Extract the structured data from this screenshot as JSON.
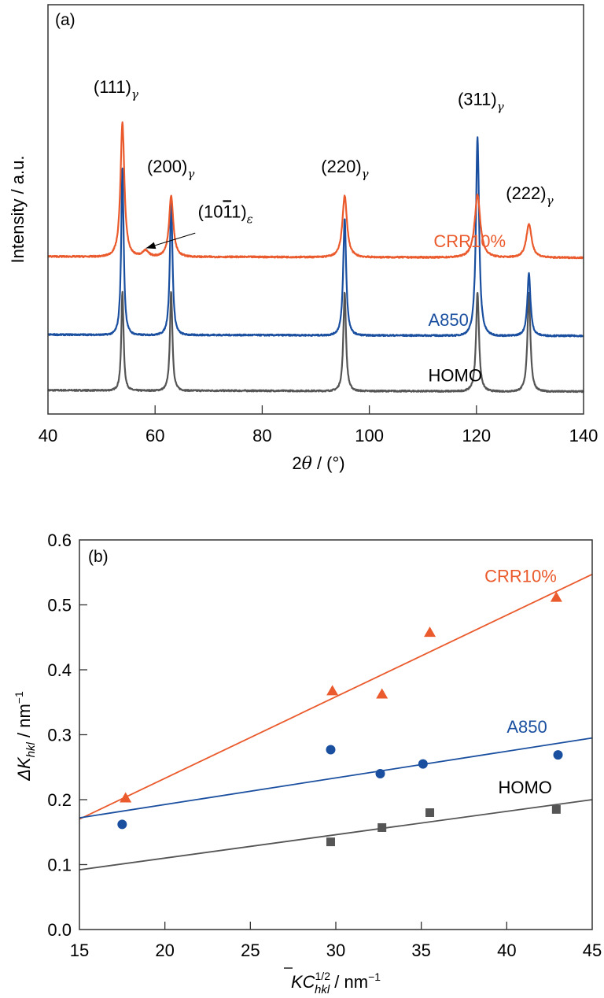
{
  "chart_data": [
    {
      "panel": "(a)",
      "type": "line",
      "title": "",
      "xlabel": "2θ / (°)",
      "ylabel": "Intensity / a.u.",
      "xlim": [
        40,
        140
      ],
      "ylim": [
        0,
        100
      ],
      "xticks": [
        40,
        60,
        80,
        100,
        120,
        140
      ],
      "yticks_shown": false,
      "grid": false,
      "legend": "inline labels",
      "series": [
        {
          "name": "CRR10%",
          "color": "#ea5a2c",
          "baseline": 38.5,
          "peaks": [
            {
              "two_theta": 53.9,
              "height": 71.2,
              "width": 0.55
            },
            {
              "two_theta": 58.2,
              "height": 40.0,
              "width": 0.9
            },
            {
              "two_theta": 63.0,
              "height": 53.3,
              "width": 0.6
            },
            {
              "two_theta": 95.4,
              "height": 53.5,
              "width": 0.65
            },
            {
              "two_theta": 120.2,
              "height": 53.8,
              "width": 0.8
            },
            {
              "two_theta": 129.8,
              "height": 46.7,
              "width": 0.75
            }
          ]
        },
        {
          "name": "A850",
          "color": "#1a4fa0",
          "baseline": 19.4,
          "peaks": [
            {
              "two_theta": 53.9,
              "height": 60.0,
              "width": 0.35
            },
            {
              "two_theta": 63.0,
              "height": 52.0,
              "width": 0.38
            },
            {
              "two_theta": 95.4,
              "height": 48.0,
              "width": 0.42
            },
            {
              "two_theta": 120.2,
              "height": 67.9,
              "width": 0.45
            },
            {
              "two_theta": 129.8,
              "height": 34.6,
              "width": 0.45
            }
          ]
        },
        {
          "name": "HOMO",
          "color": "#555555",
          "baseline": 5.8,
          "peaks": [
            {
              "two_theta": 53.9,
              "height": 30.0,
              "width": 0.32
            },
            {
              "two_theta": 63.0,
              "height": 30.0,
              "width": 0.35
            },
            {
              "two_theta": 95.4,
              "height": 30.0,
              "width": 0.38
            },
            {
              "two_theta": 120.2,
              "height": 30.0,
              "width": 0.42
            },
            {
              "two_theta": 129.8,
              "height": 30.0,
              "width": 0.42
            }
          ]
        }
      ],
      "series_labels": [
        {
          "text": "CRR10%",
          "x": 112,
          "y": 40.8
        },
        {
          "text": "A850",
          "x": 111,
          "y": 21.5
        },
        {
          "text": "HOMO",
          "x": 111,
          "y": 8.0
        }
      ],
      "annotations": [
        {
          "main": "(111)",
          "sub": "γ",
          "x": 48.5,
          "y": 78.5
        },
        {
          "main": "(200)",
          "sub": "γ",
          "x": 58.5,
          "y": 59.0
        },
        {
          "main": "(10",
          "overbar": "1",
          "rest": "1)",
          "sub": "ε",
          "x": 68.0,
          "y": 48.0,
          "arrow_to": [
            58.3,
            40.5
          ],
          "arrow_from": [
            67.5,
            44.2
          ]
        },
        {
          "main": "(220)",
          "sub": "γ",
          "x": 91.0,
          "y": 59.0
        },
        {
          "main": "(311)",
          "sub": "γ",
          "x": 116.5,
          "y": 75.5
        },
        {
          "main": "(222)",
          "sub": "γ",
          "x": 125.5,
          "y": 52.5
        }
      ]
    },
    {
      "panel": "(b)",
      "type": "scatter",
      "title": "",
      "xlabel": "KC̄^(1/2)_hkl / nm^-1",
      "xlabel_parts": {
        "main": "KC",
        "sup": "1/2",
        "sub": "hkl",
        "rest": " / nm",
        "rest_sup": "−1"
      },
      "ylabel": "ΔK_hkl / nm^-1",
      "ylabel_parts": {
        "main": "ΔK",
        "sub": "hkl",
        "rest": " / nm",
        "rest_sup": "−1"
      },
      "xlim": [
        15,
        45
      ],
      "ylim": [
        0.0,
        0.6
      ],
      "xticks": [
        15,
        20,
        25,
        30,
        35,
        40,
        45
      ],
      "yticks": [
        0.0,
        0.1,
        0.2,
        0.3,
        0.4,
        0.5,
        0.6
      ],
      "ytick_labels": [
        "0.0",
        "0.1",
        "0.2",
        "0.3",
        "0.4",
        "0.5",
        "0.6"
      ],
      "grid": false,
      "legend": "inline labels",
      "series": [
        {
          "name": "CRR10%",
          "color": "#ea5a2c",
          "marker": "triangle",
          "x": [
            17.7,
            29.8,
            32.7,
            35.5,
            42.9
          ],
          "y": [
            0.203,
            0.368,
            0.363,
            0.458,
            0.512
          ],
          "fit": {
            "x": [
              15,
              45
            ],
            "y": [
              0.17,
              0.547
            ]
          },
          "label_pos": [
            38.7,
            0.535
          ]
        },
        {
          "name": "A850",
          "color": "#1a4fa0",
          "marker": "circle",
          "x": [
            17.5,
            29.7,
            32.6,
            35.1,
            43.0
          ],
          "y": [
            0.162,
            0.277,
            0.24,
            0.255,
            0.269
          ],
          "fit": {
            "x": [
              15,
              45
            ],
            "y": [
              0.172,
              0.295
            ]
          },
          "label_pos": [
            40.0,
            0.303
          ]
        },
        {
          "name": "HOMO",
          "color": "#555555",
          "marker": "square",
          "x": [
            29.7,
            32.7,
            35.5,
            42.9
          ],
          "y": [
            0.135,
            0.157,
            0.18,
            0.185
          ],
          "fit": {
            "x": [
              15,
              45
            ],
            "y": [
              0.092,
              0.2
            ]
          },
          "label_pos": [
            39.5,
            0.21
          ]
        }
      ]
    }
  ],
  "text": {
    "panel_a_tag": "(a)",
    "panel_b_tag": "(b)",
    "a_xlabel_main": "2",
    "a_xlabel_theta": "θ",
    "a_xlabel_rest": " / (°)",
    "a_ylabel": "Intensity / a.u."
  }
}
